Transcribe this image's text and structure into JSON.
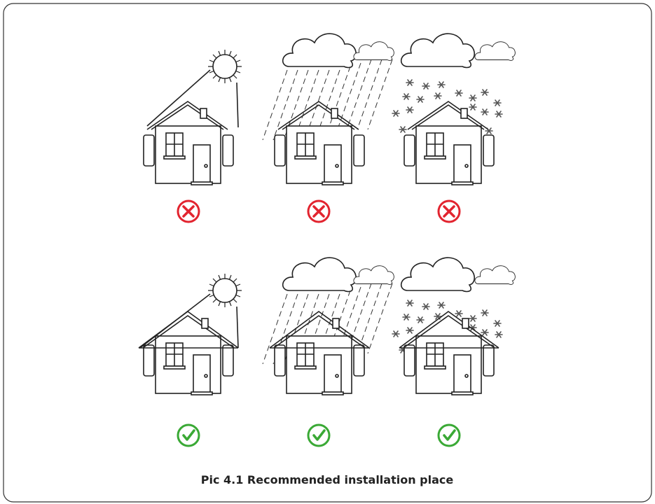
{
  "caption": "Pic 4.1 Recommended installation place"
}
